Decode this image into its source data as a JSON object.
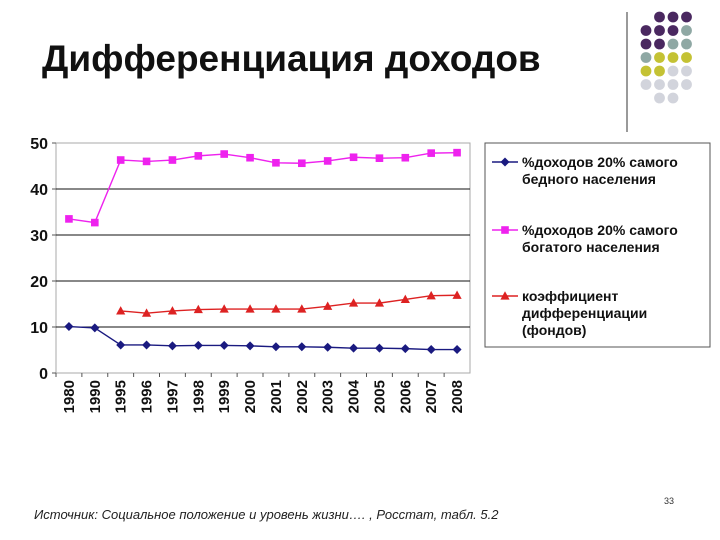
{
  "title": "Дифференциация доходов",
  "source": "Источник: Социальное положение и уровень жизни…. , Росстат, табл. 5.2",
  "page_number": "33",
  "colors": {
    "dot_purple": "#4a2860",
    "dot_teal": "#8fa8a4",
    "dot_yellow": "#c4c234",
    "dot_gray": "#d2d4dc"
  },
  "chart_data": {
    "type": "line",
    "x": [
      "1980",
      "1990",
      "1995",
      "1996",
      "1997",
      "1998",
      "1999",
      "2000",
      "2001",
      "2002",
      "2003",
      "2004",
      "2005",
      "2006",
      "2007",
      "2008"
    ],
    "ylim": [
      0,
      50
    ],
    "yticks": [
      "0",
      "10",
      "20",
      "30",
      "40",
      "50"
    ],
    "grid": true,
    "legend_position": "right",
    "series": [
      {
        "name": "%доходов 20% самого бедного населения",
        "marker": "diamond",
        "color": "#1a1a80",
        "values": [
          10.1,
          9.8,
          6.1,
          6.1,
          5.9,
          6.0,
          6.0,
          5.9,
          5.7,
          5.7,
          5.6,
          5.4,
          5.4,
          5.3,
          5.1,
          5.1
        ]
      },
      {
        "name": "%доходов 20% самого богатого населения",
        "marker": "square",
        "color": "#ee22ee",
        "values": [
          33.5,
          32.7,
          46.3,
          46.0,
          46.3,
          47.2,
          47.6,
          46.8,
          45.7,
          45.6,
          46.1,
          46.9,
          46.7,
          46.8,
          47.8,
          47.9
        ]
      },
      {
        "name": "коэффициент дифференциации (фондов)",
        "marker": "triangle",
        "color": "#dd2222",
        "values": [
          null,
          null,
          13.5,
          13.0,
          13.5,
          13.8,
          13.9,
          13.9,
          13.9,
          13.9,
          14.5,
          15.2,
          15.2,
          16.0,
          16.8,
          16.9
        ]
      }
    ]
  }
}
